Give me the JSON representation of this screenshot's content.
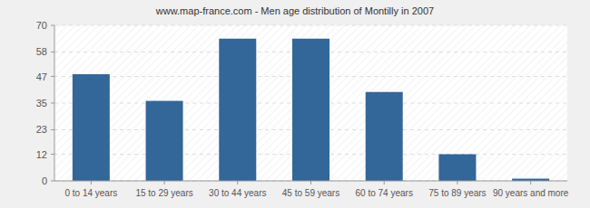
{
  "chart_data": {
    "type": "bar",
    "title": "www.map-france.com - Men age distribution of Montilly in 2007",
    "categories": [
      "0 to 14 years",
      "15 to 29 years",
      "30 to 44 years",
      "45 to 59 years",
      "60 to 74 years",
      "75 to 89 years",
      "90 years and more"
    ],
    "values": [
      48,
      36,
      64,
      64,
      40,
      12,
      1
    ],
    "color": "#336699",
    "ylim": [
      0,
      70
    ],
    "yticks": [
      0,
      12,
      23,
      35,
      47,
      58,
      70
    ],
    "grid": true
  }
}
